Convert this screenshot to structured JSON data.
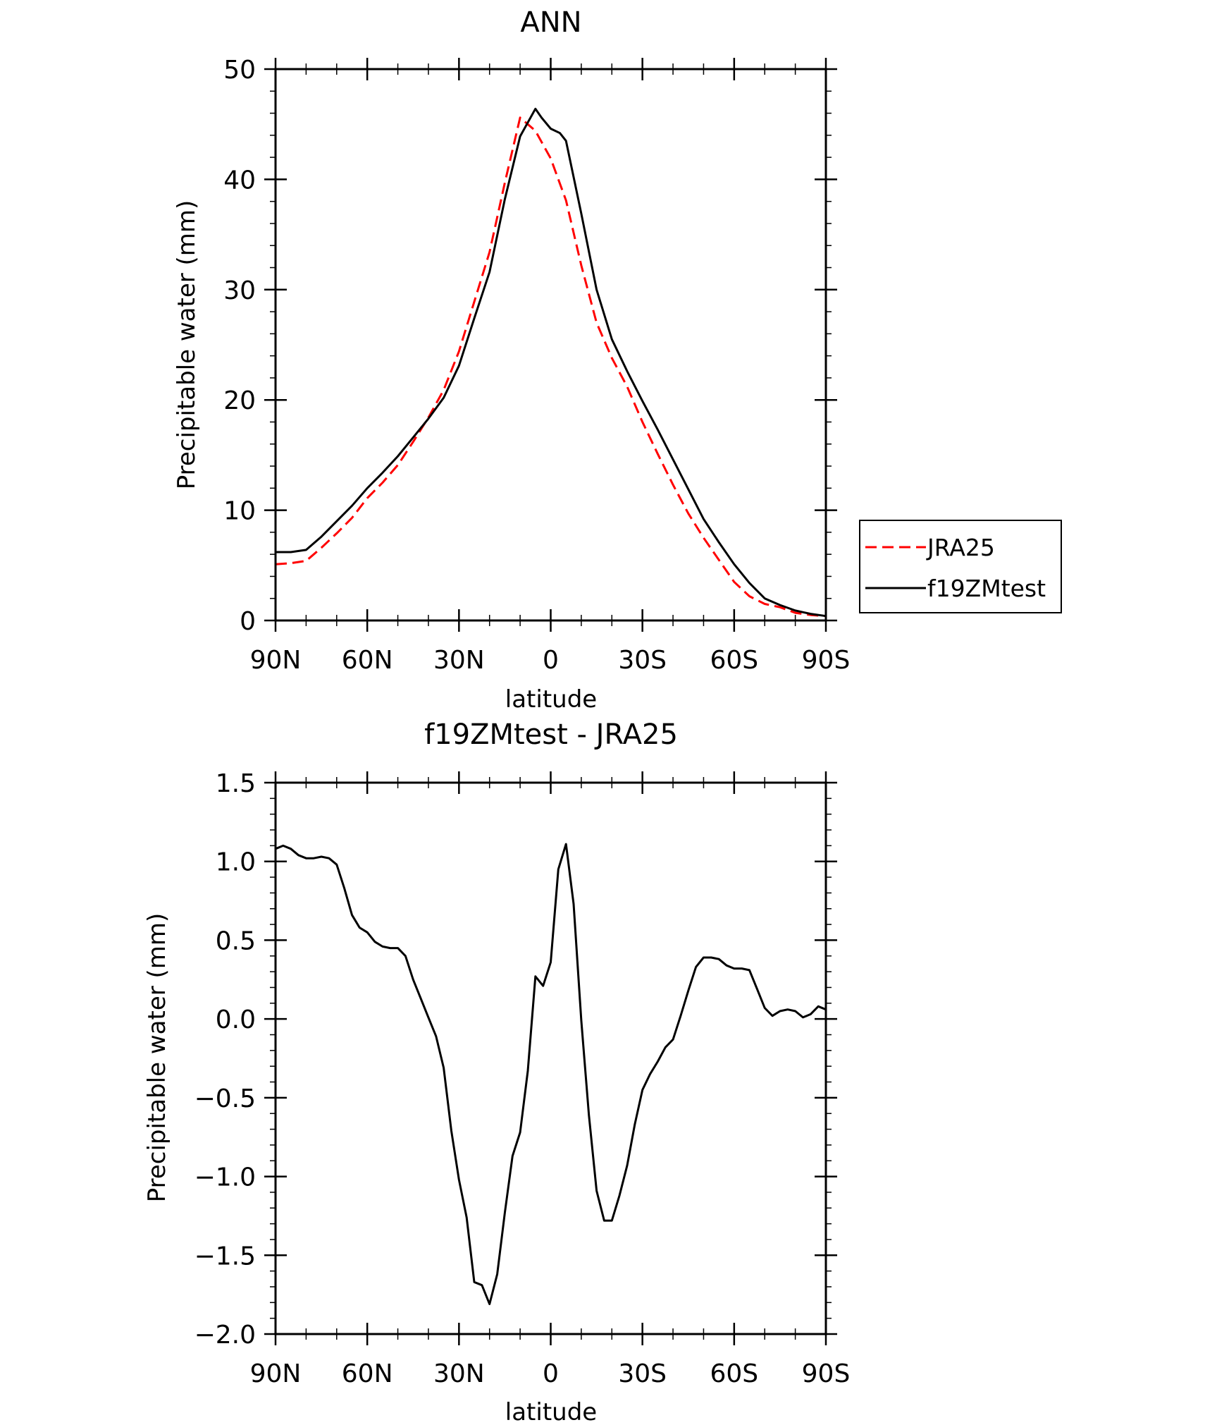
{
  "x_tick_labels": [
    "90N",
    "60N",
    "30N",
    "0",
    "30S",
    "60S",
    "90S"
  ],
  "chart_data": [
    {
      "type": "line",
      "title": "ANN",
      "xlabel": "latitude",
      "ylabel": "Precipitable water (mm)",
      "xlim": [
        90,
        -90
      ],
      "ylim": [
        0,
        50
      ],
      "y_ticks": [
        0,
        10,
        20,
        30,
        40,
        50
      ],
      "y_tick_labels": [
        "0",
        "10",
        "20",
        "30",
        "40",
        "50"
      ],
      "legend_position": "right",
      "series": [
        {
          "name": "JRA25",
          "color": "#ff0000",
          "dash": "dashed",
          "x": [
            90,
            85,
            80,
            75,
            70,
            65,
            60,
            55,
            50,
            45,
            40,
            35,
            30,
            25,
            20,
            15,
            10,
            5,
            0,
            -5,
            -10,
            -15,
            -20,
            -25,
            -30,
            -35,
            -40,
            -45,
            -50,
            -55,
            -60,
            -65,
            -70,
            -75,
            -80,
            -85,
            -90
          ],
          "values": [
            5.1,
            5.2,
            5.4,
            6.6,
            7.9,
            9.3,
            11.1,
            12.5,
            14.1,
            16.2,
            18.4,
            20.9,
            24.4,
            28.9,
            33.4,
            39.7,
            45.6,
            44.4,
            41.9,
            38.1,
            32.2,
            27.0,
            23.8,
            21.2,
            18.0,
            15.1,
            12.3,
            9.7,
            7.5,
            5.5,
            3.5,
            2.2,
            1.5,
            1.2,
            0.7,
            0.5,
            0.4
          ]
        },
        {
          "name": "f19ZMtest",
          "color": "#000000",
          "dash": "solid",
          "x": [
            90,
            85,
            80,
            75,
            70,
            65,
            60,
            55,
            50,
            45,
            40,
            35,
            30,
            25,
            20,
            15,
            10,
            5,
            3,
            0,
            -3,
            -5,
            -10,
            -15,
            -20,
            -25,
            -30,
            -35,
            -40,
            -45,
            -50,
            -55,
            -60,
            -65,
            -70,
            -75,
            -80,
            -85,
            -90
          ],
          "values": [
            6.2,
            6.2,
            6.4,
            7.6,
            9.0,
            10.4,
            12.0,
            13.4,
            14.9,
            16.6,
            18.3,
            20.2,
            23.1,
            27.4,
            31.6,
            38.2,
            43.9,
            46.4,
            45.6,
            44.6,
            44.2,
            43.5,
            36.9,
            30.0,
            25.5,
            22.6,
            19.9,
            17.3,
            14.6,
            11.9,
            9.2,
            7.1,
            5.1,
            3.4,
            2.0,
            1.4,
            0.9,
            0.6,
            0.4
          ]
        }
      ]
    },
    {
      "type": "line",
      "title": "f19ZMtest - JRA25",
      "xlabel": "latitude",
      "ylabel": "Precipitable water (mm)",
      "xlim": [
        90,
        -90
      ],
      "ylim": [
        -2.0,
        1.5
      ],
      "y_ticks": [
        -2.0,
        -1.5,
        -1.0,
        -0.5,
        0.0,
        0.5,
        1.0,
        1.5
      ],
      "y_tick_labels": [
        "−2.0",
        "−1.5",
        "−1.0",
        "−0.5",
        "0.0",
        "0.5",
        "1.0",
        "1.5"
      ],
      "series": [
        {
          "color": "#000000",
          "dash": "solid",
          "x": [
            90,
            87.5,
            85,
            82.5,
            80,
            77.5,
            75,
            72.5,
            70,
            67.5,
            65,
            62.5,
            60,
            57.5,
            55,
            52.5,
            50,
            47.5,
            45,
            42.5,
            40,
            37.5,
            35,
            32.5,
            30,
            27.5,
            25,
            22.5,
            20,
            17.5,
            15,
            12.5,
            10,
            7.5,
            5,
            2.5,
            0,
            -2.5,
            -5,
            -7.5,
            -10,
            -12.5,
            -15,
            -17.5,
            -20,
            -22.5,
            -25,
            -27.5,
            -30,
            -32.5,
            -35,
            -37.5,
            -40,
            -42.5,
            -45,
            -47.5,
            -50,
            -52.5,
            -55,
            -57.5,
            -60,
            -62.5,
            -65,
            -67.5,
            -70,
            -72.5,
            -75,
            -77.5,
            -80,
            -82.5,
            -85,
            -87.5,
            -90
          ],
          "values": [
            1.08,
            1.1,
            1.08,
            1.04,
            1.02,
            1.02,
            1.03,
            1.02,
            0.98,
            0.83,
            0.66,
            0.58,
            0.55,
            0.49,
            0.46,
            0.45,
            0.45,
            0.4,
            0.25,
            0.13,
            0.01,
            -0.11,
            -0.31,
            -0.71,
            -1.02,
            -1.26,
            -1.67,
            -1.69,
            -1.81,
            -1.62,
            -1.23,
            -0.87,
            -0.72,
            -0.33,
            0.27,
            0.21,
            0.36,
            0.95,
            1.11,
            0.73,
            -0.01,
            -0.61,
            -1.09,
            -1.28,
            -1.28,
            -1.12,
            -0.93,
            -0.67,
            -0.45,
            -0.35,
            -0.27,
            -0.18,
            -0.13,
            0.02,
            0.18,
            0.33,
            0.39,
            0.39,
            0.38,
            0.34,
            0.32,
            0.32,
            0.31,
            0.19,
            0.07,
            0.02,
            0.05,
            0.06,
            0.05,
            0.01,
            0.03,
            0.08,
            0.06
          ]
        }
      ]
    }
  ]
}
